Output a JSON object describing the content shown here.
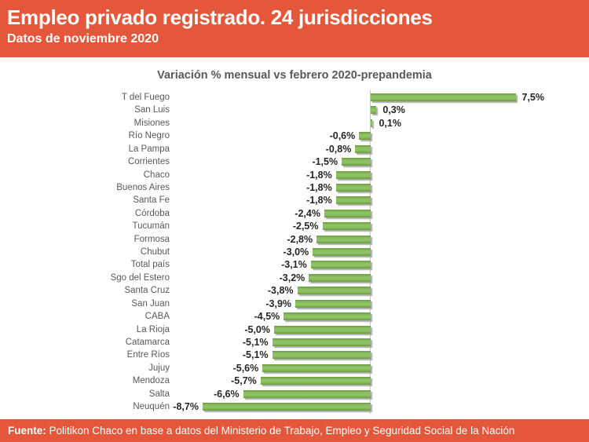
{
  "header": {
    "title": "Empleo privado registrado. 24 jurisdicciones",
    "subtitle": "Datos de noviembre 2020",
    "background": "#E5573A",
    "text_color": "#FFFFFF"
  },
  "chart_data": {
    "type": "bar",
    "orientation": "horizontal",
    "title": "Variación % mensual vs febrero 2020-prepandemia",
    "unit": "%",
    "decimal_separator": ",",
    "bar_color": "#8DC163",
    "bar_edge_color": "#68A03C",
    "grid": false,
    "legend": false,
    "xlim": [
      -9,
      11
    ],
    "categories": [
      "T del Fuego",
      "San Luis",
      "Misiones",
      "Río Negro",
      "La Pampa",
      "Corrientes",
      "Chaco",
      "Buenos Aires",
      "Santa Fe",
      "Córdoba",
      "Tucumán",
      "Formosa",
      "Chubut",
      "Total país",
      "Sgo del Estero",
      "Santa Cruz",
      "San Juan",
      "CABA",
      "La Rioja",
      "Catamarca",
      "Entre Ríos",
      "Jujuy",
      "Mendoza",
      "Salta",
      "Neuquén"
    ],
    "values": [
      7.5,
      0.3,
      0.1,
      -0.6,
      -0.8,
      -1.5,
      -1.8,
      -1.8,
      -1.8,
      -2.4,
      -2.5,
      -2.8,
      -3.0,
      -3.1,
      -3.2,
      -3.8,
      -3.9,
      -4.5,
      -5.0,
      -5.1,
      -5.1,
      -5.6,
      -5.7,
      -6.6,
      -8.7
    ],
    "value_labels": [
      "7,5%",
      "0,3%",
      "0,1%",
      "-0,6%",
      "-0,8%",
      "-1,5%",
      "-1,8%",
      "-1,8%",
      "-1,8%",
      "-2,4%",
      "-2,5%",
      "-2,8%",
      "-3,0%",
      "-3,1%",
      "-3,2%",
      "-3,8%",
      "-3,9%",
      "-4,5%",
      "-5,0%",
      "-5,1%",
      "-5,1%",
      "-5,6%",
      "-5,7%",
      "-6,6%",
      "-8,7%"
    ]
  },
  "footer": {
    "source_label": "Fuente:",
    "source_text": " Politikon Chaco en base a datos del Ministerio de Trabajo, Empleo y Seguridad Social de la Nación",
    "background": "#E5573A"
  }
}
